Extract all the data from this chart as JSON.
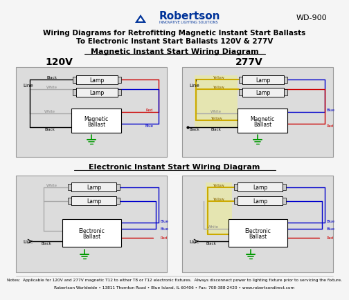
{
  "title_line1": "Wiring Diagrams for Retrofitting Magnetic Instant Start Ballasts",
  "title_line2": "To Electronic Instant Start Ballasts 120V & 277V",
  "section1_title": "Magnetic Instant Start Wiring Diagram",
  "section2_title": "Electronic Instant Start Wiring Diagram",
  "label_120v": "120V",
  "label_277v": "277V",
  "wd_number": "WD-900",
  "notes_line1": "Notes:  Applicable for 120V and 277V magnetic T12 to either T8 or T12 electronic fixtures.  Always disconnect power to lighting fixture prior to servicing the fixture.",
  "notes_line2": "Robertson Worldwide • 13811 Thornton Road • Blue Island, IL 60406 • Fax: 708-388-2420 • www.robertsondirect.com",
  "bg_color": "#f5f5f5",
  "diagram_bg": "#dcdcdc",
  "black": "#000000",
  "white": "#ffffff",
  "red": "#cc0000",
  "blue": "#0000cc",
  "yellow": "#ccaa00",
  "green": "#009900",
  "gray": "#888888",
  "robertson_blue": "#003399"
}
